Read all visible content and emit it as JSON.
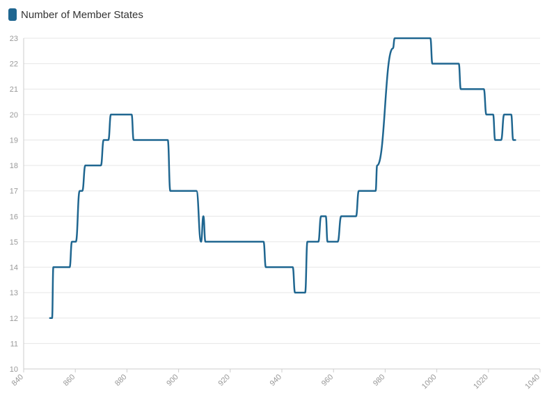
{
  "chart_data": {
    "type": "line",
    "title": "",
    "xlabel": "",
    "ylabel": "",
    "xlim": [
      840,
      1040
    ],
    "ylim": [
      10,
      23
    ],
    "x_ticks": [
      "840",
      "860",
      "880",
      "900",
      "920",
      "940",
      "960",
      "980",
      "1000",
      "1020",
      "1040"
    ],
    "y_ticks": [
      "10",
      "11",
      "12",
      "13",
      "14",
      "15",
      "16",
      "17",
      "18",
      "19",
      "20",
      "21",
      "22",
      "23"
    ],
    "grid": true,
    "legend": "top-left",
    "colors": {
      "series": "#1f6690",
      "grid": "#e6e6e6",
      "axis": "#cccccc",
      "tick_text": "#999999"
    },
    "series": [
      {
        "name": "Number of Member States",
        "points": [
          [
            850.2,
            12
          ],
          [
            851,
            12
          ],
          [
            851.5,
            14
          ],
          [
            857.8,
            14
          ],
          [
            858.7,
            15
          ],
          [
            860.2,
            15
          ],
          [
            861.7,
            17
          ],
          [
            862.7,
            17
          ],
          [
            863.9,
            18
          ],
          [
            869.9,
            18
          ],
          [
            871,
            19
          ],
          [
            872.8,
            19
          ],
          [
            873.8,
            20
          ],
          [
            881.8,
            20
          ],
          [
            882.6,
            19
          ],
          [
            895.8,
            19
          ],
          [
            896.8,
            17
          ],
          [
            906.9,
            17
          ],
          [
            908.7,
            15
          ],
          [
            909.6,
            16
          ],
          [
            910.4,
            15
          ],
          [
            932.9,
            15
          ],
          [
            933.8,
            14
          ],
          [
            944.2,
            14
          ],
          [
            945.1,
            13
          ],
          [
            949,
            13
          ],
          [
            949.9,
            15
          ],
          [
            954.1,
            15
          ],
          [
            955.2,
            16
          ],
          [
            957,
            16
          ],
          [
            957.7,
            15
          ],
          [
            961.6,
            15
          ],
          [
            963,
            16
          ],
          [
            968.7,
            16
          ],
          [
            969.8,
            17
          ],
          [
            976.3,
            17
          ],
          [
            976.9,
            18
          ],
          [
            983,
            22.6
          ],
          [
            983.7,
            23
          ],
          [
            997.5,
            23
          ],
          [
            998.3,
            22
          ],
          [
            1008.5,
            22
          ],
          [
            1009.3,
            21
          ],
          [
            1018.2,
            21
          ],
          [
            1019.2,
            20
          ],
          [
            1021.8,
            20
          ],
          [
            1022.6,
            19
          ],
          [
            1024.9,
            19
          ],
          [
            1026.1,
            20
          ],
          [
            1028.8,
            20
          ],
          [
            1029.6,
            19
          ],
          [
            1030.4,
            19
          ]
        ]
      }
    ]
  }
}
